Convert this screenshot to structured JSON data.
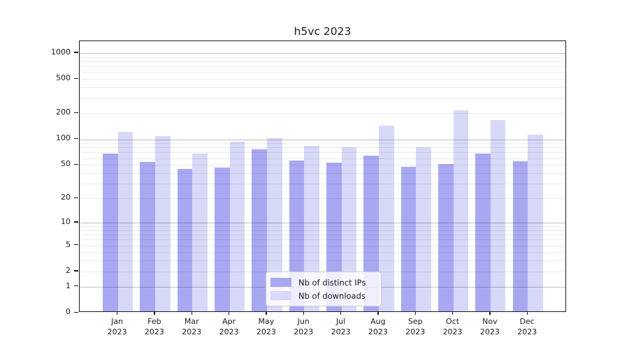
{
  "figure": {
    "title": "h5vc 2023"
  },
  "chart_data": {
    "type": "bar",
    "title": "h5vc 2023",
    "categories": [
      "Jan 2023",
      "Feb 2023",
      "Mar 2023",
      "Apr 2023",
      "May 2023",
      "Jun 2023",
      "Jul 2023",
      "Aug 2023",
      "Sep 2023",
      "Oct 2023",
      "Nov 2023",
      "Dec 2023"
    ],
    "series": [
      {
        "name": "Nb of distinct IPs",
        "color": "#a8a8f2",
        "values": [
          65,
          52,
          43,
          45,
          73,
          54,
          51,
          62,
          46,
          49,
          65,
          53
        ]
      },
      {
        "name": "Nb of downloads",
        "color": "#d8d8f8",
        "values": [
          118,
          104,
          66,
          91,
          99,
          81,
          78,
          139,
          77,
          208,
          161,
          109
        ]
      }
    ],
    "xlabel": "",
    "ylabel": "",
    "y_scale": "log10(value+1), zero pinned to baseline",
    "y_ticks": [
      0,
      1,
      2,
      5,
      10,
      20,
      50,
      100,
      200,
      500,
      1000
    ],
    "y_minor_gridlines": [
      2,
      3,
      4,
      5,
      6,
      7,
      8,
      9,
      20,
      30,
      40,
      50,
      60,
      70,
      80,
      90,
      200,
      300,
      400,
      500,
      600,
      700,
      800,
      900
    ],
    "y_major_gridlines": [
      1,
      10,
      100,
      1000
    ],
    "ylim": [
      0,
      1350
    ],
    "grid": "horizontal, on",
    "legend": {
      "position": "inside-bottom-center",
      "entries": [
        "Nb of distinct IPs",
        "Nb of downloads"
      ]
    },
    "colors": {
      "bar_distinct_ips": "#a8a8f2",
      "bar_downloads": "#d8d8f8",
      "axis": "#1a1a1a",
      "minor_grid": "#ebebeb",
      "major_grid": "#bfbfbf",
      "legend_border": "#cccccc"
    }
  }
}
